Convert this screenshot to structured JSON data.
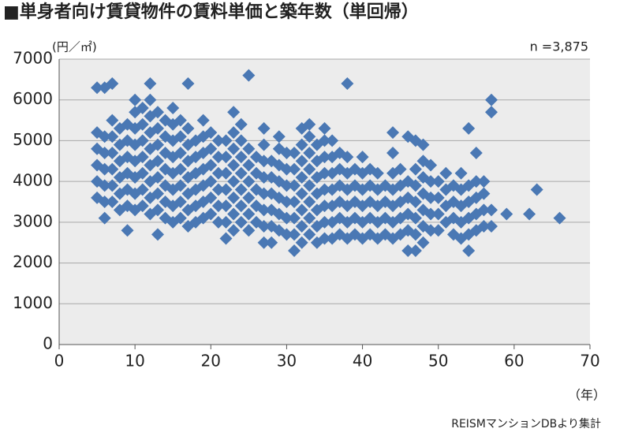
{
  "chart_data": {
    "type": "scatter",
    "title": "■単身者向け賃貸物件の賃料単価と築年数（単回帰）",
    "y_label": "(円／㎡)",
    "note": "n =3,875",
    "x_label": "（年）",
    "source": "REISMマンションDBより集計",
    "color": "#4a78b4",
    "grid": true,
    "xlim": [
      0,
      70
    ],
    "xticks": [
      0,
      10,
      20,
      30,
      40,
      50,
      60,
      70
    ],
    "ylim": [
      0,
      7000
    ],
    "yticks": [
      0,
      1000,
      2000,
      3000,
      4000,
      5000,
      6000,
      7000
    ],
    "x": [
      5,
      5,
      5,
      5,
      5,
      5,
      6,
      6,
      6,
      6,
      6,
      6,
      6,
      7,
      7,
      7,
      7,
      7,
      7,
      7,
      8,
      8,
      8,
      8,
      8,
      8,
      9,
      9,
      9,
      9,
      9,
      9,
      9,
      10,
      10,
      10,
      10,
      10,
      10,
      10,
      10,
      11,
      11,
      11,
      11,
      11,
      11,
      11,
      12,
      12,
      12,
      12,
      12,
      12,
      12,
      12,
      12,
      13,
      13,
      13,
      13,
      13,
      13,
      13,
      13,
      14,
      14,
      14,
      14,
      14,
      14,
      14,
      15,
      15,
      15,
      15,
      15,
      15,
      15,
      15,
      16,
      16,
      16,
      16,
      16,
      16,
      16,
      17,
      17,
      17,
      17,
      17,
      17,
      17,
      17,
      18,
      18,
      18,
      18,
      18,
      18,
      19,
      19,
      19,
      19,
      19,
      19,
      19,
      20,
      20,
      20,
      20,
      20,
      20,
      21,
      21,
      21,
      21,
      21,
      21,
      22,
      22,
      22,
      22,
      22,
      22,
      22,
      23,
      23,
      23,
      23,
      23,
      23,
      23,
      23,
      24,
      24,
      24,
      24,
      24,
      24,
      24,
      25,
      25,
      25,
      25,
      25,
      25,
      25,
      26,
      26,
      26,
      26,
      26,
      27,
      27,
      27,
      27,
      27,
      27,
      27,
      27,
      28,
      28,
      28,
      28,
      28,
      28,
      29,
      29,
      29,
      29,
      29,
      29,
      29,
      30,
      30,
      30,
      30,
      30,
      30,
      31,
      31,
      31,
      31,
      31,
      31,
      31,
      32,
      32,
      32,
      32,
      32,
      32,
      32,
      32,
      33,
      33,
      33,
      33,
      33,
      33,
      33,
      33,
      34,
      34,
      34,
      34,
      34,
      34,
      34,
      35,
      35,
      35,
      35,
      35,
      35,
      35,
      35,
      36,
      36,
      36,
      36,
      36,
      36,
      36,
      37,
      37,
      37,
      37,
      37,
      37,
      38,
      38,
      38,
      38,
      38,
      38,
      38,
      39,
      39,
      39,
      39,
      39,
      40,
      40,
      40,
      40,
      40,
      40,
      41,
      41,
      41,
      41,
      41,
      42,
      42,
      42,
      42,
      42,
      43,
      43,
      43,
      43,
      44,
      44,
      44,
      44,
      44,
      44,
      44,
      45,
      45,
      45,
      45,
      45,
      46,
      46,
      46,
      46,
      46,
      46,
      47,
      47,
      47,
      47,
      47,
      47,
      47,
      48,
      48,
      48,
      48,
      48,
      48,
      48,
      49,
      49,
      49,
      49,
      49,
      50,
      50,
      50,
      50,
      51,
      51,
      51,
      51,
      52,
      52,
      52,
      52,
      53,
      53,
      53,
      53,
      53,
      54,
      54,
      54,
      54,
      54,
      54,
      55,
      55,
      55,
      55,
      55,
      56,
      56,
      56,
      56,
      57,
      57,
      57,
      57,
      59,
      62,
      63,
      66
    ],
    "values": [
      3600,
      4000,
      4400,
      4800,
      5200,
      6300,
      3100,
      3500,
      3900,
      4300,
      4700,
      5100,
      6300,
      3500,
      3900,
      4300,
      4700,
      5100,
      5500,
      6400,
      3300,
      3700,
      4100,
      4500,
      4900,
      5300,
      2800,
      3400,
      3800,
      4200,
      4600,
      5000,
      5400,
      3300,
      3700,
      4100,
      4500,
      4900,
      5300,
      5700,
      6000,
      3400,
      3800,
      4200,
      4600,
      5000,
      5400,
      5800,
      3200,
      3600,
      4000,
      4400,
      4800,
      5200,
      5600,
      6000,
      6400,
      2700,
      3300,
      3700,
      4100,
      4500,
      4900,
      5300,
      5700,
      3100,
      3500,
      3900,
      4300,
      4700,
      5100,
      5500,
      3000,
      3400,
      3800,
      4200,
      4600,
      5000,
      5400,
      5800,
      3100,
      3500,
      3900,
      4300,
      4700,
      5100,
      5500,
      2900,
      3300,
      3700,
      4100,
      4500,
      4900,
      5300,
      6400,
      3000,
      3400,
      3800,
      4200,
      4600,
      5000,
      3100,
      3500,
      3900,
      4300,
      4700,
      5100,
      5500,
      3200,
      3600,
      4000,
      4400,
      4800,
      5200,
      3000,
      3400,
      3800,
      4200,
      4600,
      5000,
      2600,
      3000,
      3400,
      3800,
      4200,
      4600,
      5000,
      2800,
      3200,
      3600,
      4000,
      4400,
      4800,
      5200,
      5700,
      3000,
      3400,
      3800,
      4200,
      4600,
      5000,
      5400,
      2800,
      3200,
      3600,
      4000,
      4400,
      4800,
      6600,
      3000,
      3400,
      3800,
      4200,
      4600,
      2500,
      2900,
      3300,
      3700,
      4100,
      4500,
      4900,
      5300,
      2500,
      2900,
      3300,
      3700,
      4100,
      4500,
      2800,
      3200,
      3600,
      4000,
      4400,
      4800,
      5100,
      2700,
      3100,
      3500,
      3900,
      4300,
      4700,
      2300,
      2700,
      3100,
      3500,
      3900,
      4300,
      4700,
      2500,
      2900,
      3300,
      3700,
      4100,
      4500,
      4900,
      5300,
      2700,
      3100,
      3500,
      3900,
      4300,
      4700,
      5100,
      5400,
      2500,
      2900,
      3300,
      3700,
      4100,
      4500,
      4900,
      2600,
      3000,
      3400,
      3800,
      4200,
      4600,
      5000,
      5300,
      2600,
      3000,
      3400,
      3800,
      4200,
      4600,
      5000,
      2700,
      3100,
      3500,
      3900,
      4300,
      4700,
      2600,
      3000,
      3400,
      3800,
      4200,
      4600,
      6400,
      2700,
      3100,
      3500,
      3900,
      4300,
      2600,
      3000,
      3400,
      3800,
      4200,
      4600,
      2700,
      3100,
      3500,
      3900,
      4300,
      2600,
      3000,
      3400,
      3800,
      4200,
      2700,
      3100,
      3500,
      3900,
      2600,
      3000,
      3400,
      3800,
      4200,
      4700,
      5200,
      2700,
      3100,
      3500,
      3900,
      4300,
      2300,
      2800,
      3200,
      3600,
      4000,
      5100,
      2300,
      2700,
      3100,
      3500,
      3900,
      4300,
      5000,
      2500,
      2900,
      3300,
      3700,
      4100,
      4500,
      4900,
      2800,
      3200,
      3600,
      4000,
      4400,
      2800,
      3200,
      3600,
      4000,
      3000,
      3400,
      3800,
      4200,
      2700,
      3100,
      3500,
      3900,
      2600,
      3000,
      3400,
      3800,
      4200,
      2300,
      2700,
      3100,
      3500,
      3900,
      5300,
      2800,
      3200,
      3600,
      4000,
      4700,
      2900,
      3300,
      3700,
      4000,
      2900,
      3300,
      5700,
      6000,
      3200,
      3200,
      3800,
      3100
    ]
  }
}
